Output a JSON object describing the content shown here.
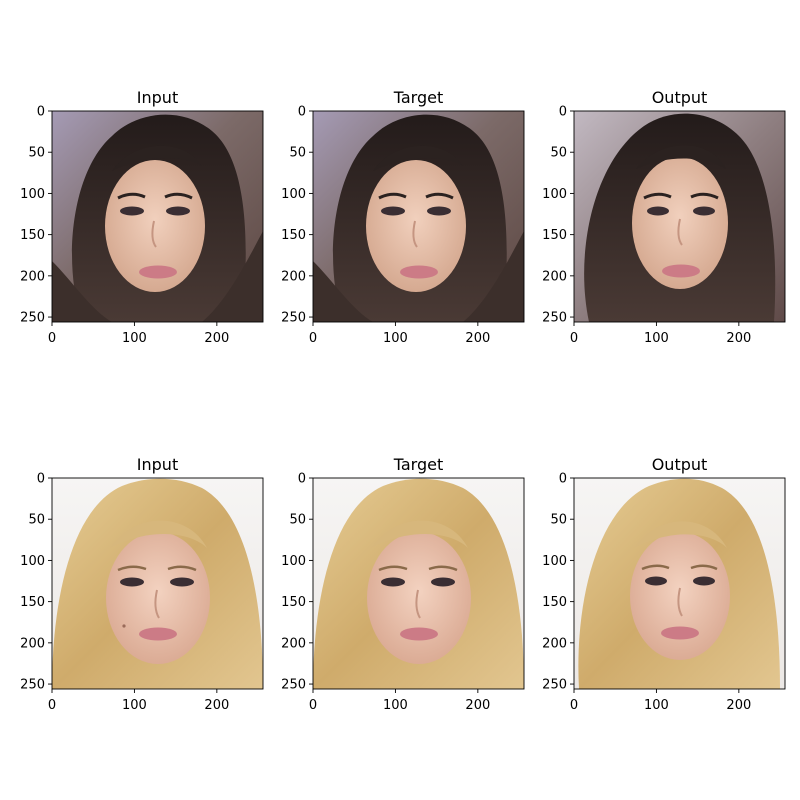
{
  "chart_data": {
    "type": "image-grid",
    "rows": 2,
    "cols": 3,
    "panels": [
      {
        "title": "Input",
        "image": "woman-dark-hair-portrait",
        "xlim": [
          0,
          256
        ],
        "ylim": [
          256,
          0
        ],
        "xticks": [
          0,
          100,
          200
        ],
        "yticks": [
          0,
          50,
          100,
          150,
          200,
          250
        ]
      },
      {
        "title": "Target",
        "image": "woman-dark-hair-portrait",
        "xlim": [
          0,
          256
        ],
        "ylim": [
          256,
          0
        ],
        "xticks": [
          0,
          100,
          200
        ],
        "yticks": [
          0,
          50,
          100,
          150,
          200,
          250
        ]
      },
      {
        "title": "Output",
        "image": "woman-dark-hair-portrait-generated",
        "xlim": [
          0,
          256
        ],
        "ylim": [
          256,
          0
        ],
        "xticks": [
          0,
          100,
          200
        ],
        "yticks": [
          0,
          50,
          100,
          150,
          200,
          250
        ]
      },
      {
        "title": "Input",
        "image": "woman-blonde-hair-portrait",
        "xlim": [
          0,
          256
        ],
        "ylim": [
          256,
          0
        ],
        "xticks": [
          0,
          100,
          200
        ],
        "yticks": [
          0,
          50,
          100,
          150,
          200,
          250
        ]
      },
      {
        "title": "Target",
        "image": "woman-blonde-hair-portrait",
        "xlim": [
          0,
          256
        ],
        "ylim": [
          256,
          0
        ],
        "xticks": [
          0,
          100,
          200
        ],
        "yticks": [
          0,
          50,
          100,
          150,
          200,
          250
        ]
      },
      {
        "title": "Output",
        "image": "woman-blonde-hair-portrait-generated",
        "xlim": [
          0,
          256
        ],
        "ylim": [
          256,
          0
        ],
        "xticks": [
          0,
          100,
          200
        ],
        "yticks": [
          0,
          50,
          100,
          150,
          200,
          250
        ]
      }
    ]
  },
  "colors": {
    "dark_bg": "#6e5a55",
    "dark_bg_light": "#9a8fa6",
    "dark_hair": "#2b2220",
    "dark_skin": "#e2b9a3",
    "blonde_bg": "#f3f0ee",
    "blonde_hair": "#d7b77c",
    "blonde_skin": "#e9c0a8",
    "lips": "#cc7b86",
    "eyes": "#3a2e33"
  }
}
